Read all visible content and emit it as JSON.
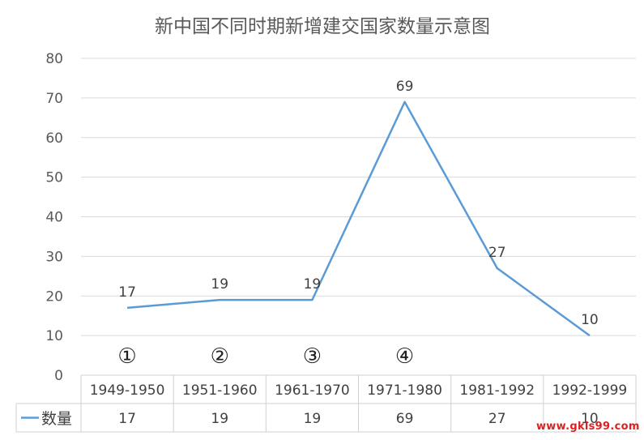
{
  "chart_data": {
    "type": "line",
    "title": "新中国不同时期新增建交国家数量示意图",
    "categories": [
      "1949-1950",
      "1951-1960",
      "1961-1970",
      "1971-1980",
      "1981-1992",
      "1992-1999"
    ],
    "series": [
      {
        "name": "数量",
        "values": [
          17,
          19,
          19,
          69,
          27,
          10
        ],
        "color": "#5b9bd5"
      }
    ],
    "ylim": [
      0,
      80
    ],
    "yticks": [
      0,
      10,
      20,
      30,
      40,
      50,
      60,
      70,
      80
    ],
    "grid": true,
    "annotations": [
      "①",
      "②",
      "③",
      "④"
    ],
    "legend": "data-table-left"
  },
  "watermark": "www.gkls99.com"
}
